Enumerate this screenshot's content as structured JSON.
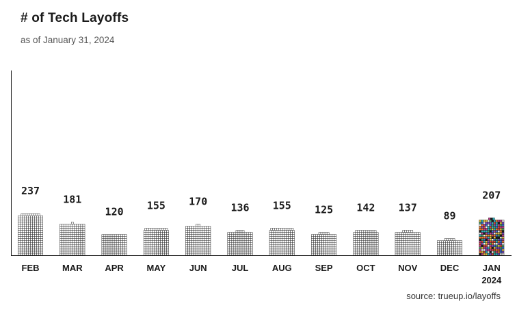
{
  "header": {
    "title": "# of Tech Layoffs",
    "subtitle": "as of January 31, 2024"
  },
  "footer": {
    "source": "source: trueup.io/layoffs"
  },
  "colors": {
    "text": "#1a1a1a",
    "grid_block": "#ffffff",
    "grid_stroke": "#1a1a1a",
    "logo_palette": [
      "#1d1d1d",
      "#3a6fd8",
      "#e8c341",
      "#d94a3b",
      "#49a36b",
      "#7e4cc2",
      "#f0f0f0",
      "#2bb3c0",
      "#ef7d31",
      "#c43d8c"
    ]
  },
  "chart_data": {
    "type": "bar",
    "title": "# of Tech Layoffs",
    "subtitle": "as of January 31, 2024",
    "categories": [
      "FEB",
      "MAR",
      "APR",
      "MAY",
      "JUN",
      "JUL",
      "AUG",
      "SEP",
      "OCT",
      "NOV",
      "DEC",
      "JAN 2024"
    ],
    "tick_labels": [
      [
        "FEB"
      ],
      [
        "MAR"
      ],
      [
        "APR"
      ],
      [
        "MAY"
      ],
      [
        "JUN"
      ],
      [
        "JUL"
      ],
      [
        "AUG"
      ],
      [
        "SEP"
      ],
      [
        "OCT"
      ],
      [
        "NOV"
      ],
      [
        "DEC"
      ],
      [
        "JAN",
        "2024"
      ]
    ],
    "values": [
      237,
      181,
      120,
      155,
      170,
      136,
      155,
      125,
      142,
      137,
      89,
      207
    ],
    "highlight_index": 11,
    "grid": false,
    "legend": "none",
    "xlabel": "",
    "ylabel": ""
  }
}
